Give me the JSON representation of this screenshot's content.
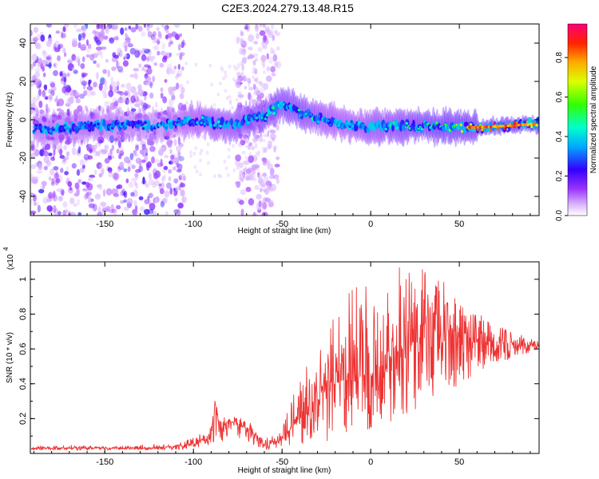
{
  "title": "C2E3.2024.279.13.48.R15",
  "chart_data": [
    {
      "type": "heatmap",
      "xlabel": "Height of straight line (km)",
      "ylabel": "Frequency (Hz)",
      "xlim": [
        -192,
        95
      ],
      "ylim": [
        -50,
        50
      ],
      "xticks": [
        -150,
        -100,
        -50,
        0,
        50
      ],
      "yticks": [
        -40,
        -20,
        0,
        20,
        40
      ],
      "colorbar": {
        "label": "Normalized spectral amplitude",
        "range": [
          0,
          0.97
        ],
        "ticks": [
          0.0,
          0.2,
          0.4,
          0.6,
          0.8
        ],
        "colormap": [
          "#ffffff",
          "#c080ff",
          "#8000ff",
          "#0000ff",
          "#00c0ff",
          "#00ff80",
          "#80ff00",
          "#ffff00",
          "#ff8000",
          "#ff0000",
          "#ff0080"
        ]
      },
      "ridge": {
        "description": "dominant spectral line",
        "x": [
          -180,
          -150,
          -120,
          -100,
          -80,
          -60,
          -50,
          -45,
          -40,
          -30,
          -20,
          -10,
          0,
          20,
          40,
          60,
          80,
          95
        ],
        "y": [
          -5,
          -3,
          -3,
          0,
          -3,
          2,
          8,
          7,
          4,
          1,
          -1,
          -3,
          -4,
          -3,
          -4,
          -4,
          -3,
          -2
        ],
        "peak_amplitude": [
          0.3,
          0.3,
          0.25,
          0.35,
          0.4,
          0.45,
          0.45,
          0.45,
          0.45,
          0.4,
          0.35,
          0.35,
          0.4,
          0.45,
          0.5,
          0.75,
          0.9,
          0.85
        ]
      },
      "noise_regions": [
        {
          "x_range": [
            -192,
            -105
          ],
          "amplitude": 0.15
        },
        {
          "x_range": [
            -75,
            -52
          ],
          "amplitude": 0.1
        }
      ]
    },
    {
      "type": "line",
      "xlabel": "Height of straight line (km)",
      "ylabel": "SNR (10 * v/v)",
      "y_multiplier_label": "(x10",
      "y_multiplier_exp": "4",
      "xlim": [
        -192,
        95
      ],
      "ylim": [
        0,
        1.1
      ],
      "xticks": [
        -150,
        -100,
        -50,
        0,
        50
      ],
      "yticks": [
        0.2,
        0.4,
        0.6,
        0.8,
        1.0
      ],
      "ytick_labels": [
        "0.2",
        "0.4",
        "0.6",
        "0.8",
        "1"
      ],
      "color": "#ee3333",
      "series": [
        {
          "x": [
            -190,
            -170,
            -150,
            -130,
            -110,
            -100,
            -90,
            -88,
            -85,
            -80,
            -70,
            -60,
            -50,
            -40,
            -30,
            -20,
            -10,
            0,
            10,
            20,
            30,
            40,
            50,
            60,
            70,
            80,
            90,
            95
          ],
          "y": [
            0.03,
            0.03,
            0.03,
            0.03,
            0.04,
            0.06,
            0.1,
            0.3,
            0.14,
            0.18,
            0.15,
            0.06,
            0.08,
            0.2,
            0.35,
            0.4,
            0.45,
            0.45,
            0.55,
            0.6,
            0.7,
            0.72,
            0.7,
            0.66,
            0.64,
            0.63,
            0.62,
            0.63
          ],
          "envelope_max": [
            0.04,
            0.05,
            0.04,
            0.05,
            0.06,
            0.09,
            0.15,
            0.32,
            0.2,
            0.22,
            0.2,
            0.08,
            0.15,
            0.45,
            0.6,
            0.8,
            1.0,
            0.95,
            1.05,
            1.08,
            1.1,
            1.0,
            0.9,
            0.82,
            0.75,
            0.7,
            0.66,
            0.65
          ],
          "envelope_min": [
            0.02,
            0.02,
            0.02,
            0.02,
            0.02,
            0.03,
            0.05,
            0.06,
            0.06,
            0.08,
            0.06,
            0.02,
            0.03,
            0.05,
            0.05,
            0.08,
            0.1,
            0.12,
            0.15,
            0.2,
            0.25,
            0.3,
            0.38,
            0.45,
            0.5,
            0.55,
            0.58,
            0.6
          ]
        }
      ]
    }
  ]
}
